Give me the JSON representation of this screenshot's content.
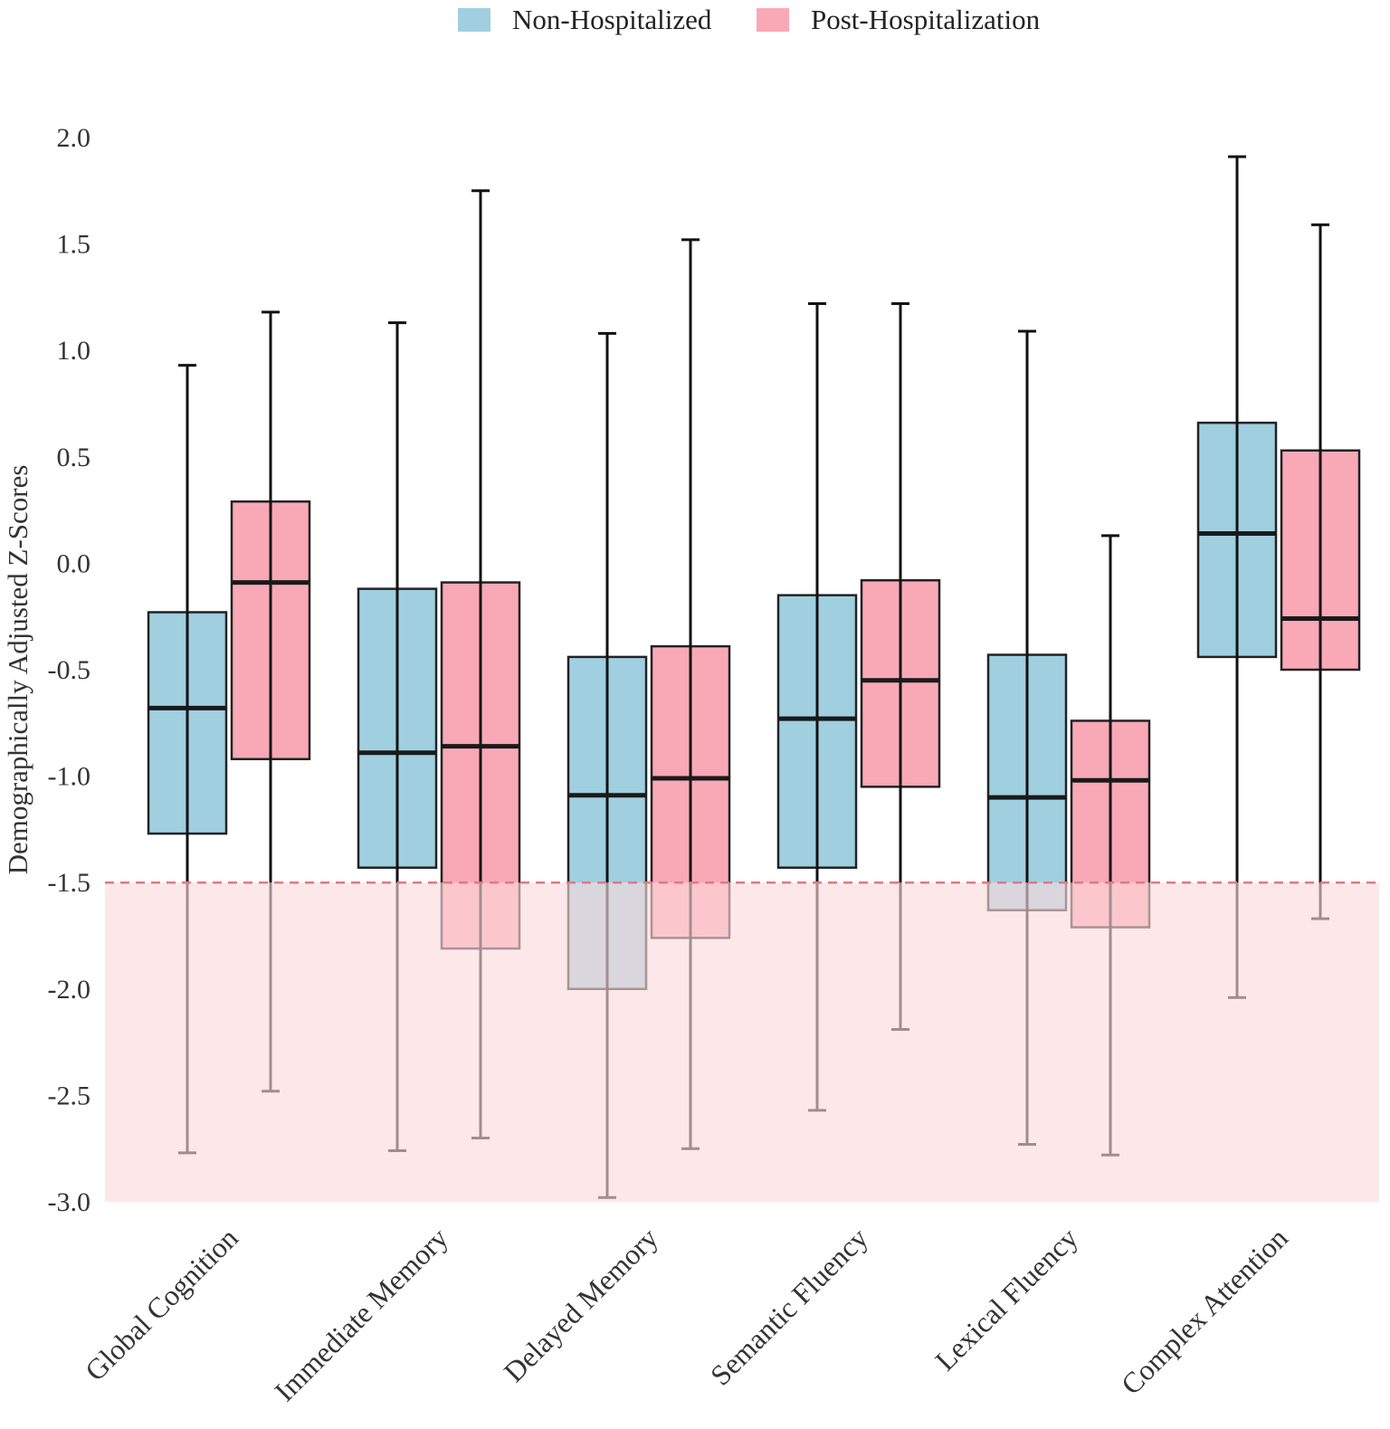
{
  "chart_data": {
    "type": "boxplot",
    "ylabel": "Demographically Adjusted Z-Scores",
    "xlabel": "",
    "ylim": [
      -3.0,
      2.0
    ],
    "yticks": [
      "2.0",
      "1.5",
      "1.0",
      "0.5",
      "0.0",
      "-0.5",
      "-1.0",
      "-1.5",
      "-2.0",
      "-2.5",
      "-3.0"
    ],
    "ytick_values": [
      2.0,
      1.5,
      1.0,
      0.5,
      0.0,
      -0.5,
      -1.0,
      -1.5,
      -2.0,
      -2.5,
      -3.0
    ],
    "threshold": -1.5,
    "shaded_range": [
      -3.0,
      -1.5
    ],
    "legend_position": "top-center",
    "categories": [
      "Global Cognition",
      "Immediate Memory",
      "Delayed Memory",
      "Semantic Fluency",
      "Lexical Fluency",
      "Complex Attention"
    ],
    "series": [
      {
        "name": "Non-Hospitalized",
        "color": "#A0CFE0",
        "boxes": [
          {
            "whisker_low": -2.77,
            "q1": -1.27,
            "median": -0.68,
            "q3": -0.23,
            "whisker_high": 0.93
          },
          {
            "whisker_low": -2.76,
            "q1": -1.43,
            "median": -0.89,
            "q3": -0.12,
            "whisker_high": 1.13
          },
          {
            "whisker_low": -2.98,
            "q1": -2.0,
            "median": -1.09,
            "q3": -0.44,
            "whisker_high": 1.08
          },
          {
            "whisker_low": -2.57,
            "q1": -1.43,
            "median": -0.73,
            "q3": -0.15,
            "whisker_high": 1.22
          },
          {
            "whisker_low": -2.73,
            "q1": -1.63,
            "median": -1.1,
            "q3": -0.43,
            "whisker_high": 1.09
          },
          {
            "whisker_low": -2.04,
            "q1": -0.44,
            "median": 0.14,
            "q3": 0.66,
            "whisker_high": 1.91
          }
        ]
      },
      {
        "name": "Post-Hospitalization",
        "color": "#F9A8B6",
        "boxes": [
          {
            "whisker_low": -2.48,
            "q1": -0.92,
            "median": -0.09,
            "q3": 0.29,
            "whisker_high": 1.18
          },
          {
            "whisker_low": -2.7,
            "q1": -1.81,
            "median": -0.86,
            "q3": -0.09,
            "whisker_high": 1.75
          },
          {
            "whisker_low": -2.75,
            "q1": -1.76,
            "median": -1.01,
            "q3": -0.39,
            "whisker_high": 1.52
          },
          {
            "whisker_low": -2.19,
            "q1": -1.05,
            "median": -0.55,
            "q3": -0.08,
            "whisker_high": 1.22
          },
          {
            "whisker_low": -2.78,
            "q1": -1.71,
            "median": -1.02,
            "q3": -0.74,
            "whisker_high": 0.13
          },
          {
            "whisker_low": -1.67,
            "q1": -0.5,
            "median": -0.26,
            "q3": 0.53,
            "whisker_high": 1.59
          }
        ]
      }
    ],
    "colors": {
      "shade": "#FBDADC",
      "threshold_line": "#E07A80",
      "box_border": "#222222"
    }
  }
}
